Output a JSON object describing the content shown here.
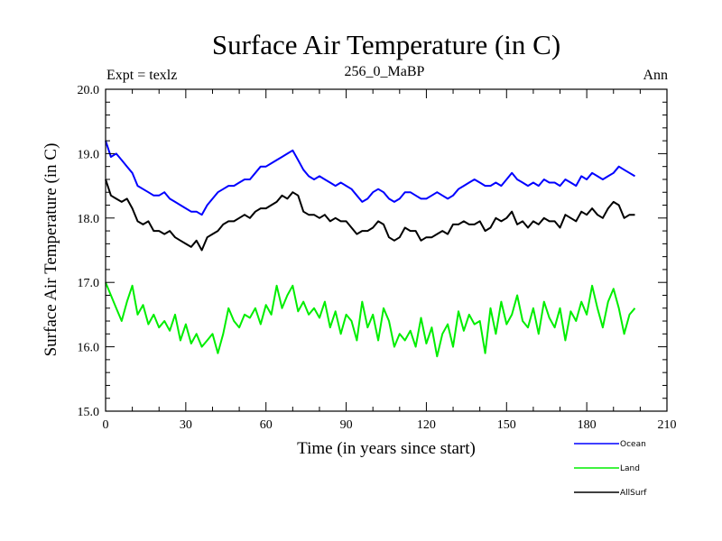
{
  "chart_data": {
    "type": "line",
    "title": "Surface Air Temperature (in C)",
    "subtitle_left": "Expt = texlz",
    "subtitle_center": "256_0_MaBP",
    "subtitle_right": "Ann",
    "xlabel": "Time (in years since start)",
    "ylabel": "Surface Air Temperature (in C)",
    "xlim": [
      0,
      210
    ],
    "ylim": [
      15.0,
      20.0
    ],
    "xticks": [
      0,
      30,
      60,
      90,
      120,
      150,
      180,
      210
    ],
    "xtick_labels": [
      "0",
      "30",
      "60",
      "90",
      "120",
      "150",
      "180",
      "210"
    ],
    "yticks": [
      15.0,
      16.0,
      17.0,
      18.0,
      19.0,
      20.0
    ],
    "ytick_labels": [
      "15.0",
      "16.0",
      "17.0",
      "18.0",
      "19.0",
      "20.0"
    ],
    "legend_position": "below-right",
    "series": [
      {
        "name": "Ocean",
        "color": "#0000ff",
        "x": [
          0,
          2,
          4,
          6,
          8,
          10,
          12,
          14,
          16,
          18,
          20,
          22,
          24,
          26,
          28,
          30,
          32,
          34,
          36,
          38,
          40,
          42,
          44,
          46,
          48,
          50,
          52,
          54,
          56,
          58,
          60,
          62,
          64,
          66,
          68,
          70,
          72,
          74,
          76,
          78,
          80,
          82,
          84,
          86,
          88,
          90,
          92,
          94,
          96,
          98,
          100,
          102,
          104,
          106,
          108,
          110,
          112,
          114,
          116,
          118,
          120,
          122,
          124,
          126,
          128,
          130,
          132,
          134,
          136,
          138,
          140,
          142,
          144,
          146,
          148,
          150,
          152,
          154,
          156,
          158,
          160,
          162,
          164,
          166,
          168,
          170,
          172,
          174,
          176,
          178,
          180,
          182,
          184,
          186,
          188,
          190,
          192,
          194,
          196,
          198
        ],
        "values": [
          19.2,
          18.95,
          19.0,
          18.9,
          18.8,
          18.7,
          18.5,
          18.45,
          18.4,
          18.35,
          18.35,
          18.4,
          18.3,
          18.25,
          18.2,
          18.15,
          18.1,
          18.1,
          18.05,
          18.2,
          18.3,
          18.4,
          18.45,
          18.5,
          18.5,
          18.55,
          18.6,
          18.6,
          18.7,
          18.8,
          18.8,
          18.85,
          18.9,
          18.95,
          19.0,
          19.05,
          18.9,
          18.75,
          18.65,
          18.6,
          18.65,
          18.6,
          18.55,
          18.5,
          18.55,
          18.5,
          18.45,
          18.35,
          18.25,
          18.3,
          18.4,
          18.45,
          18.4,
          18.3,
          18.25,
          18.3,
          18.4,
          18.4,
          18.35,
          18.3,
          18.3,
          18.35,
          18.4,
          18.35,
          18.3,
          18.35,
          18.45,
          18.5,
          18.55,
          18.6,
          18.55,
          18.5,
          18.5,
          18.55,
          18.5,
          18.6,
          18.7,
          18.6,
          18.55,
          18.5,
          18.55,
          18.5,
          18.6,
          18.55,
          18.55,
          18.5,
          18.6,
          18.55,
          18.5,
          18.65,
          18.6,
          18.7,
          18.65,
          18.6,
          18.65,
          18.7,
          18.8,
          18.75,
          18.7,
          18.65
        ]
      },
      {
        "name": "Land",
        "color": "#00ee00",
        "x": [
          0,
          2,
          4,
          6,
          8,
          10,
          12,
          14,
          16,
          18,
          20,
          22,
          24,
          26,
          28,
          30,
          32,
          34,
          36,
          38,
          40,
          42,
          44,
          46,
          48,
          50,
          52,
          54,
          56,
          58,
          60,
          62,
          64,
          66,
          68,
          70,
          72,
          74,
          76,
          78,
          80,
          82,
          84,
          86,
          88,
          90,
          92,
          94,
          96,
          98,
          100,
          102,
          104,
          106,
          108,
          110,
          112,
          114,
          116,
          118,
          120,
          122,
          124,
          126,
          128,
          130,
          132,
          134,
          136,
          138,
          140,
          142,
          144,
          146,
          148,
          150,
          152,
          154,
          156,
          158,
          160,
          162,
          164,
          166,
          168,
          170,
          172,
          174,
          176,
          178,
          180,
          182,
          184,
          186,
          188,
          190,
          192,
          194,
          196,
          198
        ],
        "values": [
          17.0,
          16.8,
          16.6,
          16.4,
          16.7,
          16.95,
          16.5,
          16.65,
          16.35,
          16.5,
          16.3,
          16.4,
          16.25,
          16.5,
          16.1,
          16.35,
          16.05,
          16.2,
          16.0,
          16.1,
          16.2,
          15.9,
          16.2,
          16.6,
          16.4,
          16.3,
          16.5,
          16.45,
          16.6,
          16.35,
          16.65,
          16.5,
          16.95,
          16.6,
          16.8,
          16.95,
          16.55,
          16.7,
          16.5,
          16.6,
          16.45,
          16.7,
          16.3,
          16.55,
          16.2,
          16.5,
          16.4,
          16.1,
          16.7,
          16.3,
          16.5,
          16.1,
          16.6,
          16.4,
          16.0,
          16.2,
          16.1,
          16.25,
          16.0,
          16.45,
          16.05,
          16.3,
          15.85,
          16.2,
          16.35,
          16.0,
          16.55,
          16.25,
          16.5,
          16.35,
          16.4,
          15.9,
          16.6,
          16.2,
          16.7,
          16.35,
          16.5,
          16.8,
          16.4,
          16.3,
          16.6,
          16.2,
          16.7,
          16.45,
          16.3,
          16.6,
          16.1,
          16.55,
          16.4,
          16.7,
          16.5,
          16.95,
          16.6,
          16.3,
          16.7,
          16.9,
          16.6,
          16.2,
          16.5,
          16.6
        ]
      },
      {
        "name": "AllSurf",
        "color": "#000000",
        "x": [
          0,
          2,
          4,
          6,
          8,
          10,
          12,
          14,
          16,
          18,
          20,
          22,
          24,
          26,
          28,
          30,
          32,
          34,
          36,
          38,
          40,
          42,
          44,
          46,
          48,
          50,
          52,
          54,
          56,
          58,
          60,
          62,
          64,
          66,
          68,
          70,
          72,
          74,
          76,
          78,
          80,
          82,
          84,
          86,
          88,
          90,
          92,
          94,
          96,
          98,
          100,
          102,
          104,
          106,
          108,
          110,
          112,
          114,
          116,
          118,
          120,
          122,
          124,
          126,
          128,
          130,
          132,
          134,
          136,
          138,
          140,
          142,
          144,
          146,
          148,
          150,
          152,
          154,
          156,
          158,
          160,
          162,
          164,
          166,
          168,
          170,
          172,
          174,
          176,
          178,
          180,
          182,
          184,
          186,
          188,
          190,
          192,
          194,
          196,
          198
        ],
        "values": [
          18.6,
          18.35,
          18.3,
          18.25,
          18.3,
          18.15,
          17.95,
          17.9,
          17.95,
          17.8,
          17.8,
          17.75,
          17.8,
          17.7,
          17.65,
          17.6,
          17.55,
          17.65,
          17.5,
          17.7,
          17.75,
          17.8,
          17.9,
          17.95,
          17.95,
          18.0,
          18.05,
          18.0,
          18.1,
          18.15,
          18.15,
          18.2,
          18.25,
          18.35,
          18.3,
          18.4,
          18.35,
          18.1,
          18.05,
          18.05,
          18.0,
          18.05,
          17.95,
          18.0,
          17.95,
          17.95,
          17.85,
          17.75,
          17.8,
          17.8,
          17.85,
          17.95,
          17.9,
          17.7,
          17.65,
          17.7,
          17.85,
          17.8,
          17.8,
          17.65,
          17.7,
          17.7,
          17.75,
          17.8,
          17.75,
          17.9,
          17.9,
          17.95,
          17.9,
          17.9,
          17.95,
          17.8,
          17.85,
          18.0,
          17.95,
          18.0,
          18.1,
          17.9,
          17.95,
          17.85,
          17.95,
          17.9,
          18.0,
          17.95,
          17.95,
          17.85,
          18.05,
          18.0,
          17.95,
          18.1,
          18.05,
          18.15,
          18.05,
          18.0,
          18.15,
          18.25,
          18.2,
          18.0,
          18.05,
          18.05
        ]
      }
    ]
  }
}
